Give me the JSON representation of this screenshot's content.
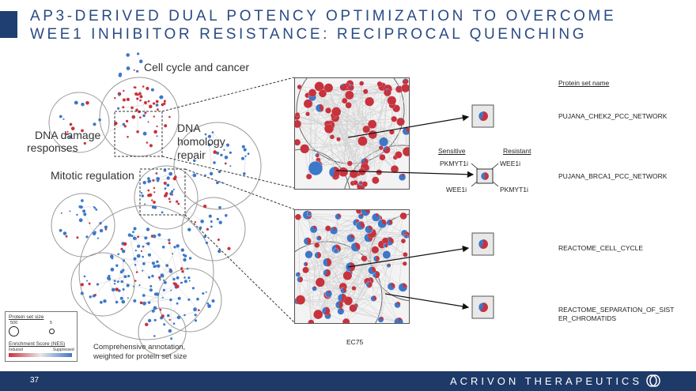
{
  "header": {
    "title_line1": "AP3-DERIVED DUAL POTENCY OPTIMIZATION TO OVERCOME",
    "title_line2": "WEE1 INHIBITOR RESISTANCE: RECIPROCAL QUENCHING"
  },
  "network": {
    "label_cell_cycle": "Cell cycle and cancer",
    "label_dna_damage_1": "DNA damage",
    "label_dna_damage_2": "responses",
    "label_dna_homology_1": "DNA",
    "label_dna_homology_2": "homology",
    "label_dna_homology_3": "repair",
    "label_mitotic": "Mitotic regulation"
  },
  "legend": {
    "size_title": "Protein set size",
    "size_large": "500",
    "size_small": "5",
    "nes_title": "Enrichment Score (NES)",
    "nes_left": "Induced",
    "nes_right": "Suppressed",
    "colors": {
      "induced": "#c8323c",
      "neutral": "#e8e8e8",
      "suppressed": "#3c78c8"
    }
  },
  "caption": {
    "line1": "Comprehensive annotation,",
    "line2": "weighted for protein set size"
  },
  "zoom": {
    "ec_label": "EC75"
  },
  "quench": {
    "sensitive": "Sensitive",
    "resistant": "Resistant",
    "left_top": "PKMYT1i",
    "right_top": "WEE1i",
    "left_bottom": "WEE1i",
    "right_bottom": "PKMYT1i"
  },
  "protein_sets": {
    "header": "Protein set name",
    "items": [
      "PUJANA_CHEK2_PCC_NETWORK",
      "PUJANA_BRCA1_PCC_NETWORK",
      "REACTOME_CELL_CYCLE",
      "REACTOME_SEPARATION_OF_SIST",
      "ER_CHROMATIDS"
    ]
  },
  "footer": {
    "page": "37",
    "brand": "ACRIVON THERAPEUTICS"
  }
}
